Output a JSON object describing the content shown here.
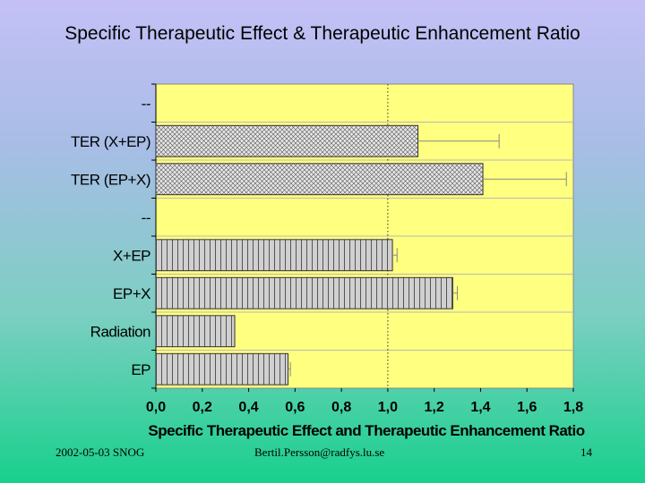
{
  "slide": {
    "title": "Specific Therapeutic Effect & Therapeutic Enhancement Ratio",
    "footer_date": "2002-05-03 SNOG",
    "footer_email": "Bertil.Persson@radfys.lu.se",
    "page_number": "14"
  },
  "chart_data": {
    "type": "bar",
    "orientation": "horizontal",
    "xlabel": "Specific Therapeutic Effect and Therapeutic Enhancement Ratio",
    "xlim": [
      0,
      1.8
    ],
    "xticks": [
      "0,0",
      "0,2",
      "0,4",
      "0,6",
      "0,8",
      "1,0",
      "1,2",
      "1,4",
      "1,6",
      "1,8"
    ],
    "reference_line": 1.0,
    "categories": [
      "--",
      "TER (X+EP)",
      "TER (EP+X)",
      "--",
      "X+EP",
      "EP+X",
      "Radiation",
      "EP"
    ],
    "values": [
      null,
      1.13,
      1.41,
      null,
      1.02,
      1.28,
      0.34,
      0.57
    ],
    "error": [
      null,
      0.35,
      0.36,
      null,
      0.02,
      0.02,
      0.0,
      0.01
    ],
    "patterns": [
      null,
      "crosshatch",
      "crosshatch",
      null,
      "vertical",
      "vertical",
      "vertical",
      "vertical"
    ],
    "plot_background": "#ffff80",
    "bar_colors": {
      "crosshatch": "#dcdcdc",
      "vertical": "#c8c8c8"
    }
  }
}
